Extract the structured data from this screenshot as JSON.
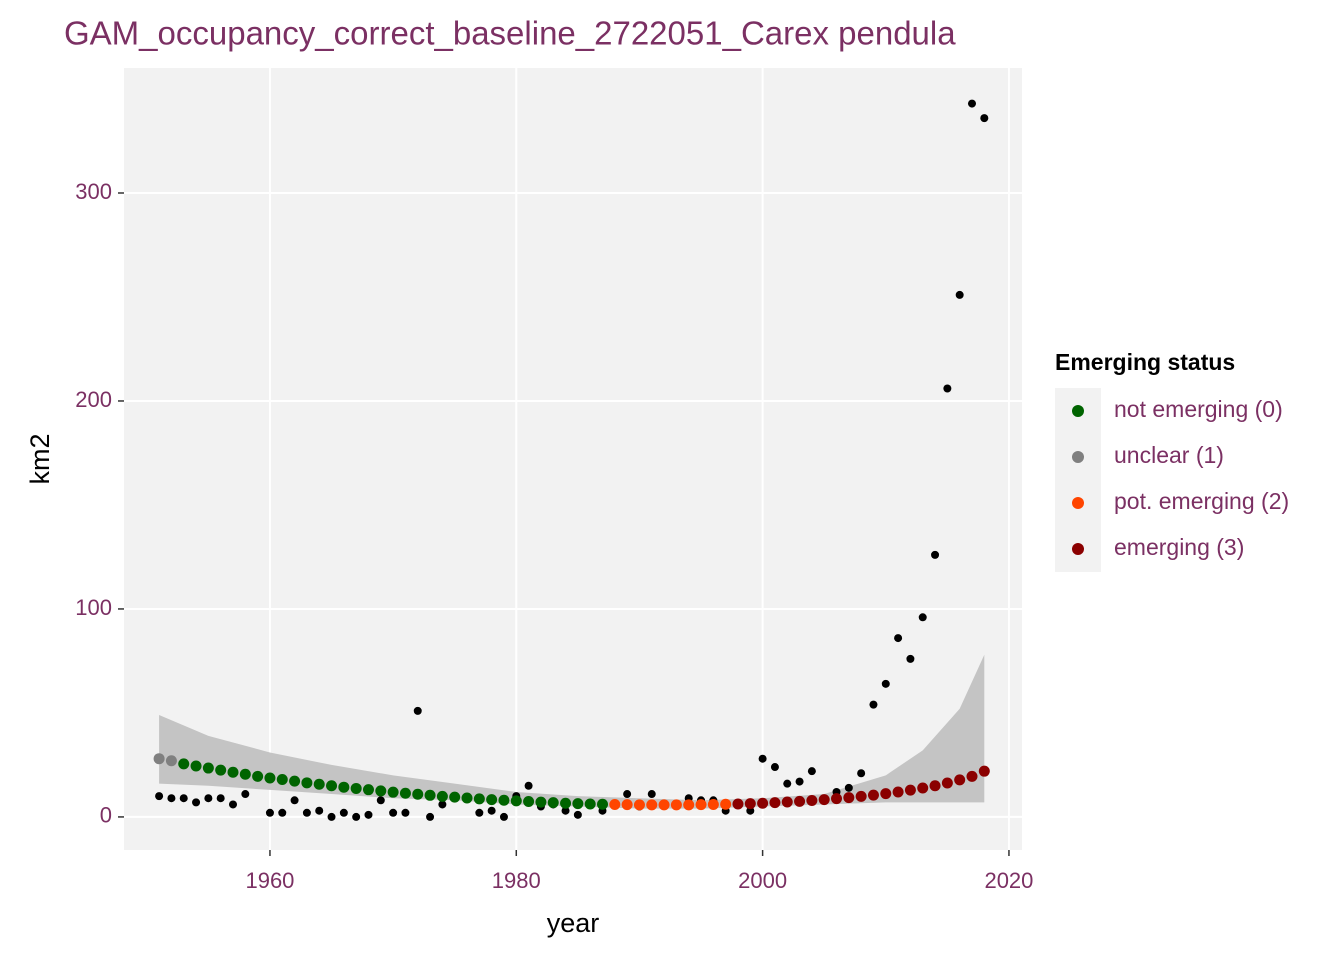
{
  "chart_data": {
    "type": "scatter",
    "title": "GAM_occupancy_correct_baseline_2722051_Carex pendula",
    "x_label": "year",
    "y_label": "km2",
    "xlim": [
      1948.15,
      2021.06
    ],
    "ylim": [
      -15.9,
      360.1
    ],
    "xticks": [
      1960,
      1980,
      2000,
      2020
    ],
    "yticks": [
      0,
      100,
      200,
      300
    ],
    "grid": true,
    "legend_title": "Emerging status",
    "legend_position": "right",
    "observed": {
      "color": "#000000",
      "x": [
        1951,
        1952,
        1953,
        1954,
        1955,
        1956,
        1957,
        1958,
        1960,
        1961,
        1962,
        1963,
        1964,
        1965,
        1966,
        1967,
        1968,
        1969,
        1970,
        1971,
        1972,
        1973,
        1974,
        1977,
        1978,
        1979,
        1980,
        1981,
        1982,
        1983,
        1984,
        1985,
        1987,
        1989,
        1990,
        1991,
        1994,
        1995,
        1996,
        1997,
        1999,
        2000,
        2001,
        2002,
        2003,
        2004,
        2006,
        2007,
        2008,
        2009,
        2010,
        2011,
        2012,
        2013,
        2014,
        2015,
        2016,
        2017,
        2018
      ],
      "values": [
        10,
        9,
        9,
        7,
        9,
        9,
        6,
        11,
        2,
        2,
        8,
        2,
        3,
        0,
        2,
        0,
        1,
        8,
        2,
        2,
        51,
        0,
        6,
        2,
        3,
        0,
        10,
        15,
        5,
        6,
        3,
        1,
        3,
        11,
        5,
        11,
        9,
        8,
        8,
        3,
        3,
        28,
        24,
        16,
        17,
        22,
        12,
        14,
        21,
        54,
        64,
        86,
        76,
        96,
        126,
        206,
        251,
        343,
        336
      ]
    },
    "ribbon": {
      "color": "#c4c4c4",
      "x": [
        1951,
        1955,
        1960,
        1965,
        1970,
        1975,
        1980,
        1985,
        1990,
        1995,
        2000,
        2005,
        2010,
        2013,
        2016,
        2018
      ],
      "upper": [
        49,
        39,
        31,
        25,
        20,
        16,
        12,
        10,
        9,
        8,
        9,
        11,
        20,
        32,
        52,
        78
      ],
      "lower": [
        16,
        15,
        13,
        11,
        9,
        8,
        6,
        5,
        4,
        4,
        5,
        6,
        7,
        7,
        7,
        7
      ]
    },
    "series": [
      {
        "name": "not emerging (0)",
        "color": "#006400",
        "x": [
          1953,
          1954,
          1955,
          1956,
          1957,
          1958,
          1959,
          1960,
          1961,
          1962,
          1963,
          1964,
          1965,
          1966,
          1967,
          1968,
          1969,
          1970,
          1971,
          1972,
          1973,
          1974,
          1975,
          1976,
          1977,
          1978,
          1979,
          1980,
          1981,
          1982,
          1983,
          1984,
          1985,
          1986,
          1987
        ],
        "values": [
          25.5,
          24.5,
          23.5,
          22.5,
          21.5,
          20.5,
          19.5,
          18.7,
          18,
          17.2,
          16.4,
          15.7,
          15,
          14.3,
          13.7,
          13.1,
          12.5,
          11.9,
          11.4,
          10.9,
          10.4,
          9.9,
          9.5,
          9.1,
          8.7,
          8.3,
          8,
          7.7,
          7.4,
          7.1,
          6.9,
          6.6,
          6.4,
          6.2,
          6.1
        ]
      },
      {
        "name": "unclear (1)",
        "color": "#808080",
        "x": [
          1951,
          1952
        ],
        "values": [
          28,
          27
        ]
      },
      {
        "name": "pot. emerging (2)",
        "color": "#ff4500",
        "x": [
          1988,
          1989,
          1990,
          1991,
          1992,
          1993,
          1994,
          1995,
          1996,
          1997
        ],
        "values": [
          6,
          5.9,
          5.8,
          5.8,
          5.8,
          5.8,
          5.8,
          5.9,
          6,
          6.1
        ]
      },
      {
        "name": "emerging (3)",
        "color": "#8b0000",
        "x": [
          1998,
          1999,
          2000,
          2001,
          2002,
          2003,
          2004,
          2005,
          2006,
          2007,
          2008,
          2009,
          2010,
          2011,
          2012,
          2013,
          2014,
          2015,
          2016,
          2017,
          2018
        ],
        "values": [
          6.2,
          6.4,
          6.6,
          6.9,
          7.2,
          7.5,
          7.9,
          8.3,
          8.8,
          9.3,
          9.9,
          10.5,
          11.2,
          12,
          12.9,
          13.9,
          15,
          16.3,
          17.8,
          19.5,
          22
        ]
      }
    ]
  }
}
